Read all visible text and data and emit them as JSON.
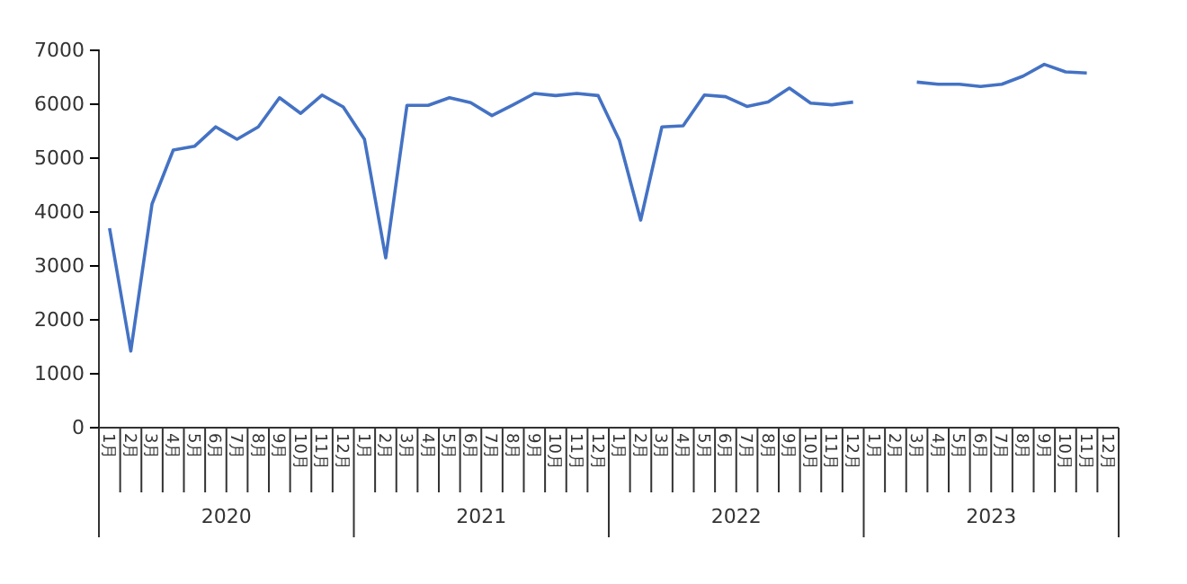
{
  "chart_data": {
    "type": "line",
    "categories": [
      "1月",
      "2月",
      "3月",
      "4月",
      "5月",
      "6月",
      "7月",
      "8月",
      "9月",
      "10月",
      "11月",
      "12月",
      "1月",
      "2月",
      "3月",
      "4月",
      "5月",
      "6月",
      "7月",
      "8月",
      "9月",
      "10月",
      "11月",
      "12月",
      "1月",
      "2月",
      "3月",
      "4月",
      "5月",
      "6月",
      "7月",
      "8月",
      "9月",
      "10月",
      "11月",
      "12月",
      "1月",
      "2月",
      "3月",
      "4月",
      "5月",
      "6月",
      "7月",
      "8月",
      "9月",
      "10月",
      "11月",
      "12月"
    ],
    "series": [
      {
        "color": "#4472c4",
        "values": [
          3700,
          1420,
          4150,
          5150,
          5220,
          5580,
          5350,
          5580,
          6120,
          5830,
          6170,
          5950,
          5350,
          3150,
          5980,
          5980,
          6120,
          6030,
          5790,
          5990,
          6200,
          6160,
          6200,
          6160,
          5330,
          3850,
          5580,
          5600,
          6170,
          6140,
          5960,
          6040,
          6300,
          6020,
          5990,
          6040,
          null,
          null,
          6410,
          6370,
          6370,
          6330,
          6370,
          6520,
          6740,
          6600,
          6580,
          null
        ]
      }
    ],
    "ylim": [
      0,
      7000
    ],
    "yticks": [
      0,
      1000,
      2000,
      3000,
      4000,
      5000,
      6000,
      7000
    ],
    "grid": false,
    "marker": "none",
    "line_style": "solid",
    "annotations": [
      "2020",
      "2021",
      "2022",
      "2023"
    ]
  }
}
